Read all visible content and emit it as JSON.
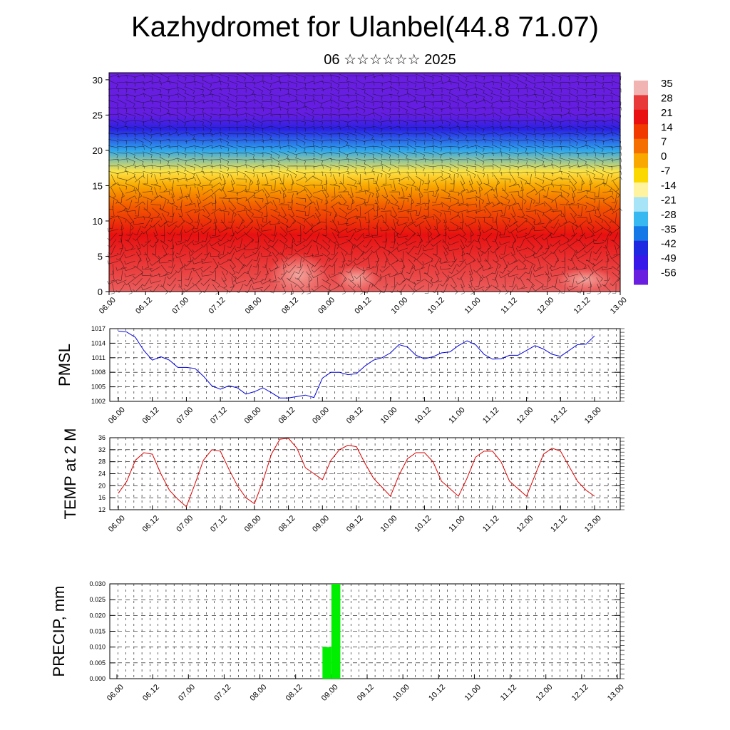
{
  "title": "Kazhydromet for Ulanbel(44.8 71.07)",
  "subtitle": "06 ☆☆☆☆☆☆ 2025",
  "time_labels": [
    "06.00",
    "06.12",
    "07.00",
    "07.12",
    "08.00",
    "08.12",
    "09.00",
    "09.12",
    "10.00",
    "10.12",
    "11.00",
    "11.12",
    "12.00",
    "12.12",
    "13.00"
  ],
  "chart_data": [
    {
      "type": "heatmap",
      "yticks": [
        0,
        5,
        10,
        15,
        20,
        25,
        30
      ],
      "ylim": [
        0,
        31
      ],
      "colorbar": {
        "labels": [
          "35",
          "28",
          "21",
          "14",
          "7",
          "0",
          "-7",
          "-14",
          "-21",
          "-28",
          "-35",
          "-42",
          "-49",
          "-56"
        ],
        "colors": [
          "#f2b3b3",
          "#e83a3a",
          "#e81010",
          "#f03a00",
          "#f56e00",
          "#f9a800",
          "#fbd800",
          "#fff3a0",
          "#a8e4f8",
          "#38b8f0",
          "#1478e6",
          "#1e28e0",
          "#3818e8",
          "#6a1ee0"
        ]
      },
      "temperature_layers": [
        {
          "height": 0,
          "value": 30
        },
        {
          "height": 8,
          "value": 21
        },
        {
          "height": 12,
          "value": 10
        },
        {
          "height": 15,
          "value": 0
        },
        {
          "height": 17,
          "value": -10
        },
        {
          "height": 20,
          "value": -30
        },
        {
          "height": 23,
          "value": -45
        },
        {
          "height": 25,
          "value": -55
        },
        {
          "height": 31,
          "value": -58
        }
      ],
      "overlay": "wind barbs"
    },
    {
      "type": "line",
      "ylabel": "PMSL",
      "ylim": [
        1002,
        1017
      ],
      "yticks": [
        1002,
        1005,
        1008,
        1011,
        1014,
        1017
      ],
      "color": "#0000dd",
      "values": [
        1016.5,
        1016.3,
        1015.2,
        1012.5,
        1010.5,
        1011.2,
        1010.5,
        1009.0,
        1009.0,
        1008.8,
        1007.2,
        1005.2,
        1004.5,
        1005.2,
        1004.8,
        1003.5,
        1004.0,
        1004.8,
        1003.8,
        1002.7,
        1002.7,
        1003.0,
        1003.3,
        1002.8,
        1006.8,
        1008.0,
        1008.0,
        1007.5,
        1007.7,
        1009.3,
        1010.5,
        1011.0,
        1012.0,
        1013.7,
        1013.2,
        1011.5,
        1010.8,
        1011.2,
        1012.0,
        1012.2,
        1013.5,
        1014.5,
        1013.7,
        1011.7,
        1010.7,
        1010.8,
        1011.5,
        1011.5,
        1012.5,
        1013.5,
        1012.8,
        1011.7,
        1011.3,
        1012.5,
        1013.7,
        1013.8,
        1015.5
      ]
    },
    {
      "type": "line",
      "ylabel": "TEMP at 2 M",
      "ylim": [
        12,
        36
      ],
      "yticks": [
        12,
        16,
        20,
        24,
        28,
        32,
        36
      ],
      "color": "#dd0000",
      "values": [
        17.5,
        21.5,
        28.5,
        31.0,
        30.5,
        24.0,
        18.5,
        15.5,
        13.0,
        20.5,
        28.5,
        32.0,
        31.5,
        25.5,
        20.0,
        16.0,
        14.0,
        21.5,
        30.5,
        35.5,
        35.8,
        32.5,
        26.0,
        24.0,
        22.0,
        28.5,
        32.0,
        33.5,
        33.0,
        27.5,
        22.5,
        19.5,
        16.5,
        23.5,
        29.0,
        31.0,
        31.0,
        28.0,
        21.5,
        19.0,
        16.5,
        22.5,
        29.5,
        31.5,
        31.5,
        28.0,
        21.5,
        19.0,
        16.5,
        23.5,
        30.5,
        32.5,
        31.5,
        26.5,
        21.5,
        18.5,
        16.5
      ]
    },
    {
      "type": "bar",
      "ylabel": "PRECIP, mm",
      "ylim": [
        0,
        0.03
      ],
      "yticks": [
        "0.000",
        "0.005",
        "0.010",
        "0.015",
        "0.020",
        "0.025",
        "0.030"
      ],
      "color": "#00ee00",
      "bars": [
        {
          "start": "08.21",
          "end": "09.00",
          "value": 0.01
        },
        {
          "start": "09.00",
          "end": "09.03",
          "value": 0.03
        }
      ]
    }
  ]
}
